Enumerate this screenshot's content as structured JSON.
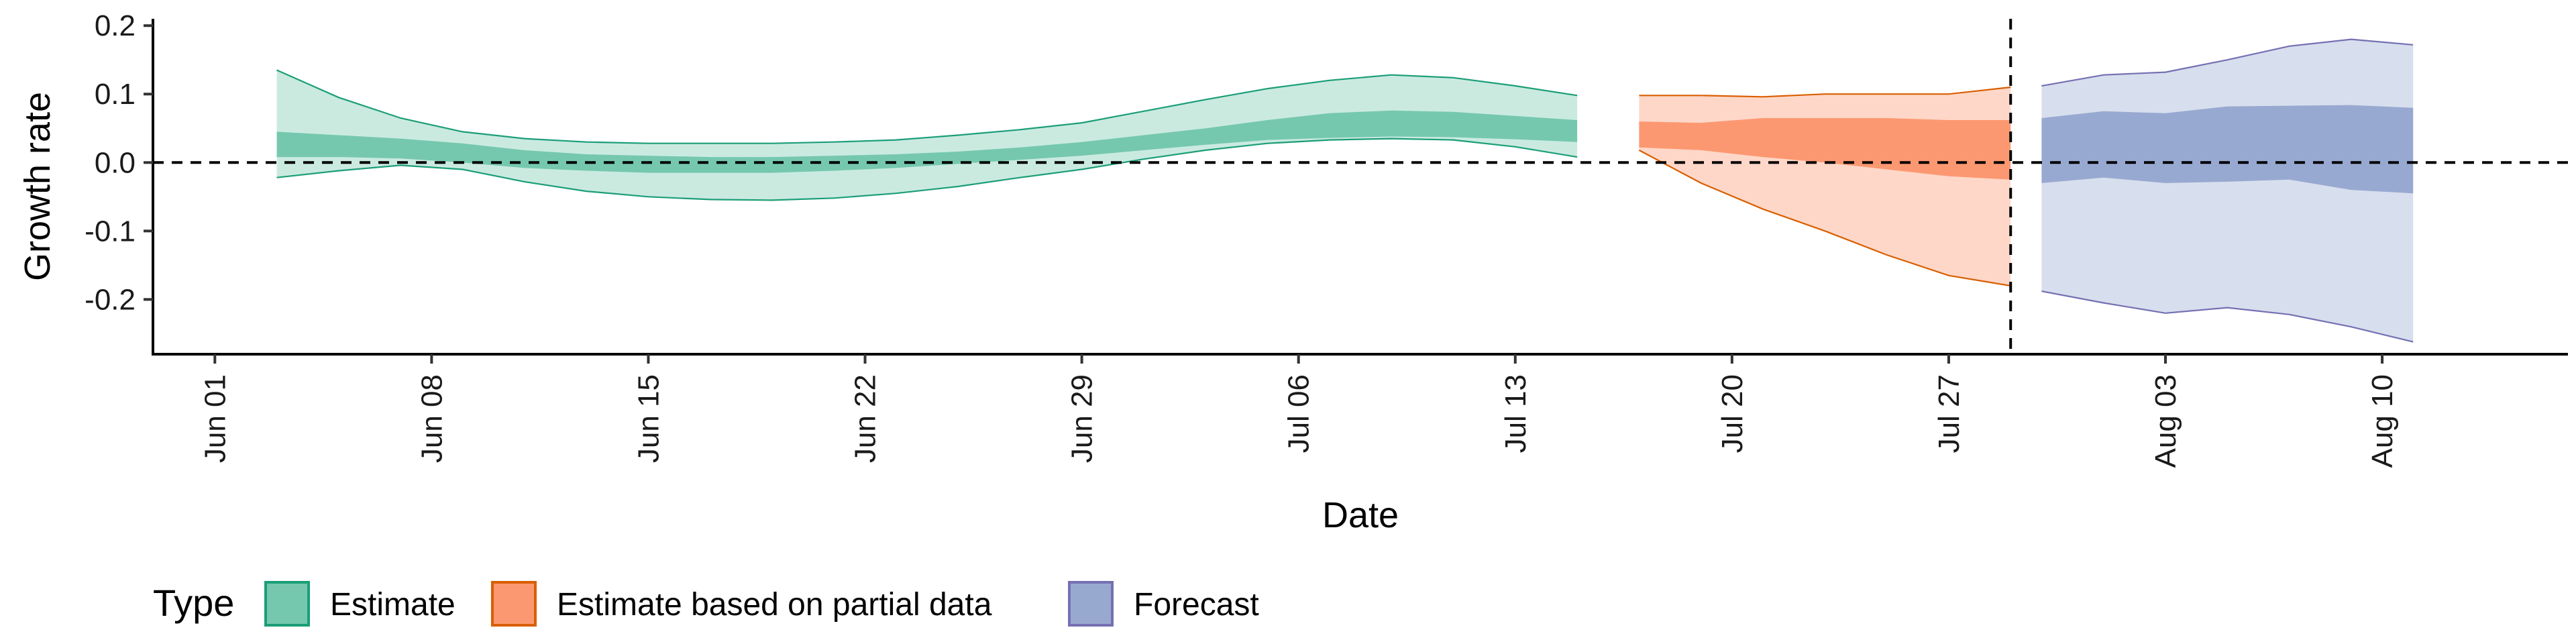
{
  "chart_data": {
    "type": "area",
    "xlabel": "Date",
    "ylabel": "Growth rate",
    "x_domain": [
      "2020-05-30",
      "2020-08-16"
    ],
    "ylim": [
      -0.28,
      0.21
    ],
    "x_tick_dates": [
      "2020-06-01",
      "2020-06-08",
      "2020-06-15",
      "2020-06-22",
      "2020-06-29",
      "2020-07-06",
      "2020-07-13",
      "2020-07-20",
      "2020-07-27",
      "2020-08-03",
      "2020-08-10"
    ],
    "x_tick_labels": [
      "Jun 01",
      "Jun 08",
      "Jun 15",
      "Jun 22",
      "Jun 29",
      "Jul 06",
      "Jul 13",
      "Jul 20",
      "Jul 27",
      "Aug 03",
      "Aug 10"
    ],
    "y_ticks": [
      -0.2,
      -0.1,
      0.0,
      0.1,
      0.2
    ],
    "y_tick_labels": [
      "-0.2",
      "-0.1",
      "0.0",
      "0.1",
      "0.2"
    ],
    "reference_lines": {
      "hline_y": 0.0,
      "vline_date": "2020-07-29"
    },
    "legend": {
      "title": "Type",
      "position": "bottom-left"
    },
    "series": [
      {
        "name": "Estimate",
        "color_fill": "#66c2a5",
        "color_line": "#1b9e77",
        "dates": [
          "2020-06-03",
          "2020-06-05",
          "2020-06-07",
          "2020-06-09",
          "2020-06-11",
          "2020-06-13",
          "2020-06-15",
          "2020-06-17",
          "2020-06-19",
          "2020-06-21",
          "2020-06-23",
          "2020-06-25",
          "2020-06-27",
          "2020-06-29",
          "2020-07-01",
          "2020-07-03",
          "2020-07-05",
          "2020-07-07",
          "2020-07-09",
          "2020-07-11",
          "2020-07-13",
          "2020-07-15"
        ],
        "outer_upper": [
          0.135,
          0.095,
          0.065,
          0.045,
          0.035,
          0.03,
          0.028,
          0.028,
          0.028,
          0.03,
          0.033,
          0.04,
          0.048,
          0.058,
          0.075,
          0.092,
          0.108,
          0.12,
          0.128,
          0.124,
          0.112,
          0.098
        ],
        "outer_lower": [
          -0.022,
          -0.012,
          -0.004,
          -0.01,
          -0.028,
          -0.042,
          -0.05,
          -0.054,
          -0.055,
          -0.052,
          -0.045,
          -0.035,
          -0.022,
          -0.01,
          0.005,
          0.018,
          0.028,
          0.033,
          0.035,
          0.033,
          0.023,
          0.008
        ],
        "inner_upper": [
          0.045,
          0.04,
          0.035,
          0.028,
          0.018,
          0.012,
          0.01,
          0.008,
          0.008,
          0.01,
          0.012,
          0.016,
          0.022,
          0.03,
          0.04,
          0.05,
          0.062,
          0.072,
          0.076,
          0.074,
          0.068,
          0.062
        ],
        "inner_lower": [
          0.008,
          0.008,
          0.006,
          0.0,
          -0.008,
          -0.012,
          -0.015,
          -0.015,
          -0.015,
          -0.012,
          -0.008,
          -0.002,
          0.004,
          0.01,
          0.018,
          0.026,
          0.033,
          0.036,
          0.038,
          0.037,
          0.034,
          0.03
        ]
      },
      {
        "name": "Estimate based on partial data",
        "color_fill": "#fc8d62",
        "color_line": "#d95f02",
        "dates": [
          "2020-07-17",
          "2020-07-19",
          "2020-07-21",
          "2020-07-23",
          "2020-07-25",
          "2020-07-27",
          "2020-07-29"
        ],
        "outer_upper": [
          0.098,
          0.098,
          0.096,
          0.1,
          0.1,
          0.1,
          0.11
        ],
        "outer_lower": [
          0.018,
          -0.03,
          -0.068,
          -0.1,
          -0.135,
          -0.165,
          -0.18
        ],
        "inner_upper": [
          0.06,
          0.058,
          0.065,
          0.065,
          0.065,
          0.062,
          0.062
        ],
        "inner_lower": [
          0.022,
          0.018,
          0.008,
          0.0,
          -0.01,
          -0.02,
          -0.025
        ]
      },
      {
        "name": "Forecast",
        "color_fill": "#8da0cb",
        "color_line": "#7570b3",
        "dates": [
          "2020-07-30",
          "2020-08-01",
          "2020-08-03",
          "2020-08-05",
          "2020-08-07",
          "2020-08-09",
          "2020-08-11"
        ],
        "outer_upper": [
          0.112,
          0.128,
          0.132,
          0.15,
          0.17,
          0.18,
          0.172
        ],
        "outer_lower": [
          -0.188,
          -0.205,
          -0.22,
          -0.212,
          -0.222,
          -0.24,
          -0.262
        ],
        "inner_upper": [
          0.065,
          0.075,
          0.072,
          0.082,
          0.083,
          0.084,
          0.08
        ],
        "inner_lower": [
          -0.03,
          -0.022,
          -0.03,
          -0.028,
          -0.025,
          -0.04,
          -0.045
        ]
      }
    ]
  }
}
